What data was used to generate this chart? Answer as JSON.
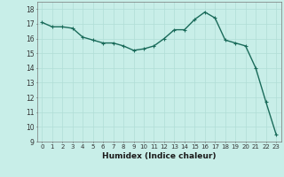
{
  "x": [
    0,
    1,
    2,
    3,
    4,
    5,
    6,
    7,
    8,
    9,
    10,
    11,
    12,
    13,
    14,
    15,
    16,
    17,
    18,
    19,
    20,
    21,
    22,
    23
  ],
  "y": [
    17.1,
    16.8,
    16.8,
    16.7,
    16.1,
    15.9,
    15.7,
    15.7,
    15.5,
    15.2,
    15.3,
    15.5,
    16.0,
    16.6,
    16.6,
    17.3,
    17.8,
    17.4,
    15.9,
    15.7,
    15.5,
    14.0,
    11.7,
    9.5
  ],
  "line_color": "#1a6b5a",
  "bg_color": "#c8eee8",
  "grid_color": "#b0ddd6",
  "xlabel": "Humidex (Indice chaleur)",
  "xlim": [
    -0.5,
    23.5
  ],
  "ylim": [
    9,
    18.5
  ],
  "yticks": [
    9,
    10,
    11,
    12,
    13,
    14,
    15,
    16,
    17,
    18
  ],
  "xticks": [
    0,
    1,
    2,
    3,
    4,
    5,
    6,
    7,
    8,
    9,
    10,
    11,
    12,
    13,
    14,
    15,
    16,
    17,
    18,
    19,
    20,
    21,
    22,
    23
  ],
  "marker": "+",
  "markersize": 3,
  "linewidth": 1.0
}
